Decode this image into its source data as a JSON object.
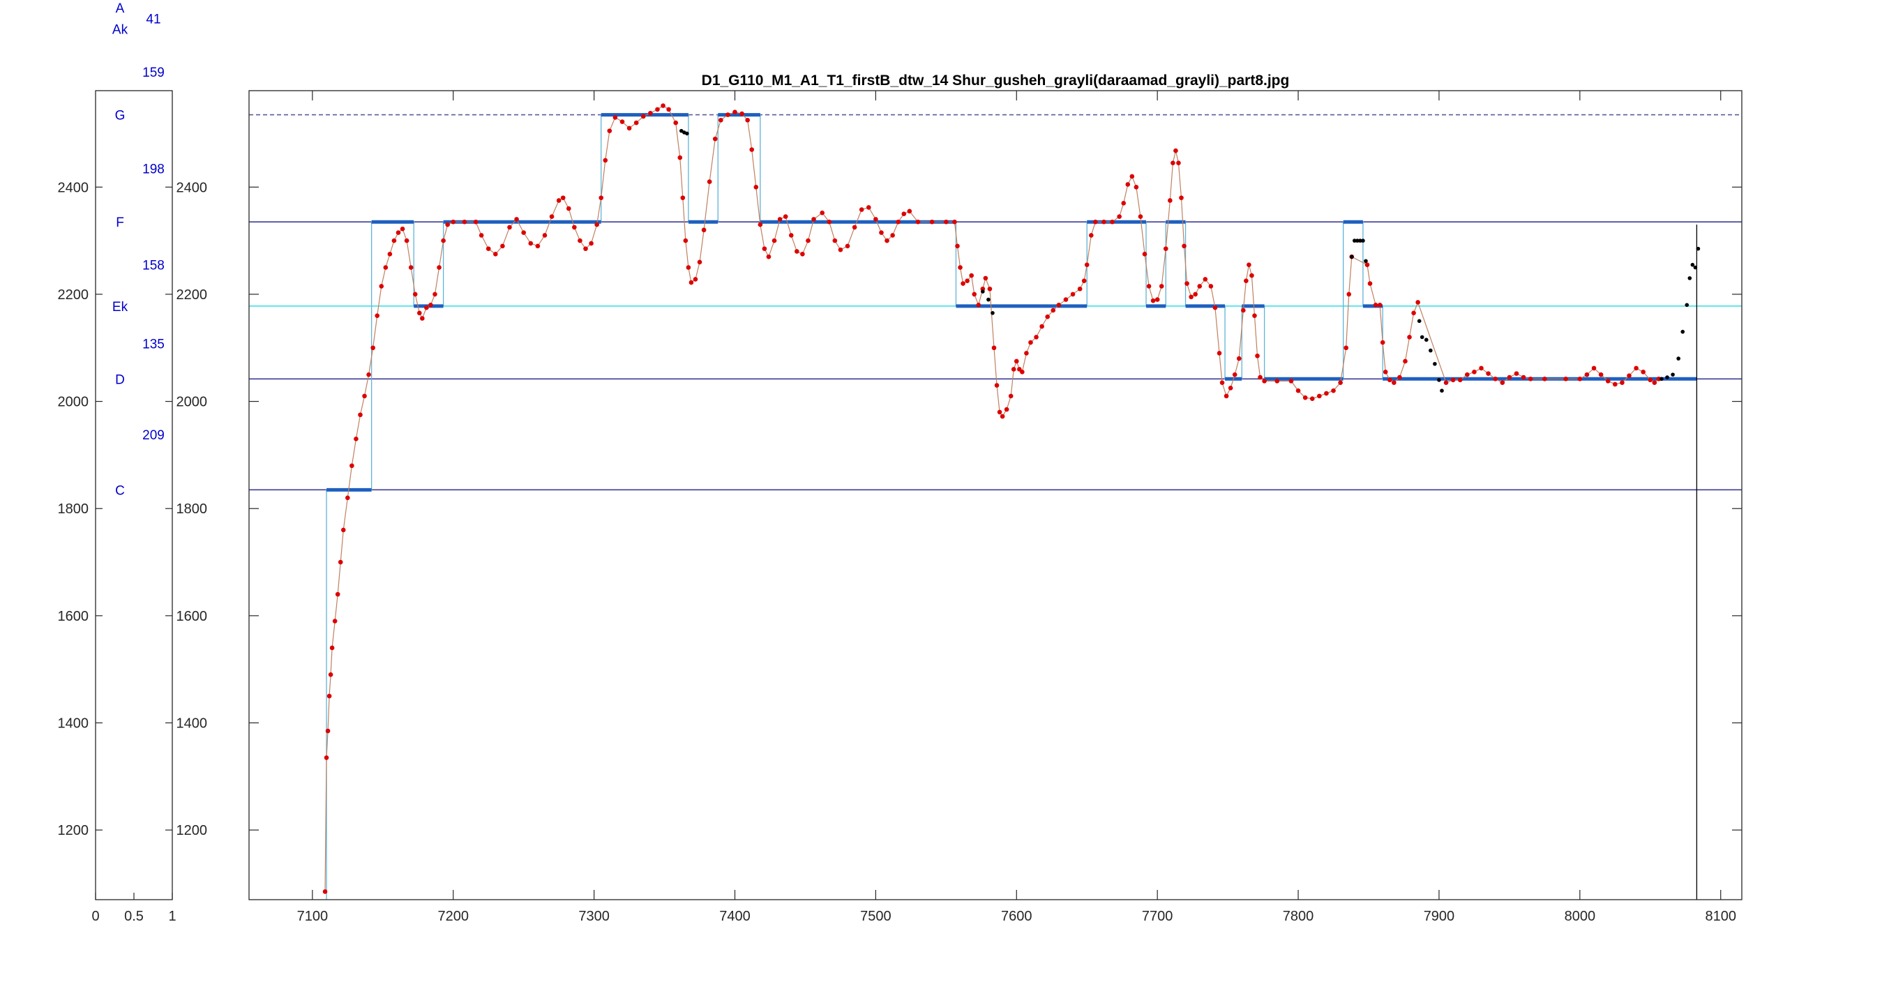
{
  "chart_data": [
    {
      "type": "line",
      "panel": "left",
      "xlim": [
        0,
        1
      ],
      "ylim": [
        1070,
        2580
      ],
      "x_ticks": [
        0,
        0.5,
        1
      ],
      "y_ticks": [
        1200,
        1400,
        1600,
        1800,
        2000,
        2200,
        2400
      ],
      "y_tick_labels": [
        "1200",
        "1400",
        "1600",
        "1800",
        "2000",
        "2200",
        "2400"
      ],
      "x_tick_labels": [
        "0",
        "0.5",
        "1"
      ],
      "note_labels": [
        {
          "text": "A",
          "y": 2735
        },
        {
          "text": "Ak",
          "y": 2695
        },
        {
          "text": "G",
          "y": 2535
        },
        {
          "text": "F",
          "y": 2335
        },
        {
          "text": "Ek",
          "y": 2178
        },
        {
          "text": "D",
          "y": 2042
        },
        {
          "text": "C",
          "y": 1835
        }
      ],
      "interval_labels": [
        {
          "text": "41",
          "y": 2715
        },
        {
          "text": "159",
          "y": 2615
        },
        {
          "text": "198",
          "y": 2435
        },
        {
          "text": "158",
          "y": 2255
        },
        {
          "text": "135",
          "y": 2108
        },
        {
          "text": "209",
          "y": 1938
        }
      ]
    },
    {
      "type": "scatter",
      "panel": "main",
      "title": "D1_G110_M1_A1_T1_firstB_dtw_14 Shur_gusheh_grayli(daraamad_grayli)_part8.jpg",
      "xlim": [
        7055,
        8115
      ],
      "ylim": [
        1070,
        2580
      ],
      "x_ticks": [
        7100,
        7200,
        7300,
        7400,
        7500,
        7600,
        7700,
        7800,
        7900,
        8000,
        8100
      ],
      "x_tick_labels": [
        "7100",
        "7200",
        "7300",
        "7400",
        "7500",
        "7600",
        "7700",
        "7800",
        "7900",
        "8000",
        "8100"
      ],
      "y_ticks": [
        1200,
        1400,
        1600,
        1800,
        2000,
        2200,
        2400
      ],
      "y_tick_labels": [
        "1200",
        "1400",
        "1600",
        "1800",
        "2000",
        "2200",
        "2400"
      ],
      "reference_lines": [
        {
          "y": 2535,
          "color": "#5a5a9a",
          "style": "dashed"
        },
        {
          "y": 2335,
          "color": "#3c3c96",
          "style": "solid"
        },
        {
          "y": 2178,
          "color": "#40e0e8",
          "style": "solid"
        },
        {
          "y": 2042,
          "color": "#3c3c96",
          "style": "solid"
        },
        {
          "y": 1835,
          "color": "#3c3c96",
          "style": "solid"
        }
      ],
      "vertical_line_x": 8083,
      "colors": {
        "pitch": "#dd0000",
        "unvoiced": "#000000",
        "segment": "#1f5fbf",
        "step_line": "#5fb4d8",
        "connector": "#c08060"
      },
      "segments": [
        {
          "x0": 7110,
          "x1": 7142,
          "y": 1835
        },
        {
          "x0": 7142,
          "x1": 7172,
          "y": 2335
        },
        {
          "x0": 7172,
          "x1": 7193,
          "y": 2178
        },
        {
          "x0": 7193,
          "x1": 7305,
          "y": 2335
        },
        {
          "x0": 7305,
          "x1": 7367,
          "y": 2535
        },
        {
          "x0": 7367,
          "x1": 7388,
          "y": 2335
        },
        {
          "x0": 7388,
          "x1": 7418,
          "y": 2535
        },
        {
          "x0": 7418,
          "x1": 7557,
          "y": 2335
        },
        {
          "x0": 7557,
          "x1": 7650,
          "y": 2178
        },
        {
          "x0": 7650,
          "x1": 7692,
          "y": 2335
        },
        {
          "x0": 7692,
          "x1": 7706,
          "y": 2178
        },
        {
          "x0": 7706,
          "x1": 7720,
          "y": 2335
        },
        {
          "x0": 7720,
          "x1": 7748,
          "y": 2178
        },
        {
          "x0": 7748,
          "x1": 7760,
          "y": 2042
        },
        {
          "x0": 7760,
          "x1": 7776,
          "y": 2178
        },
        {
          "x0": 7776,
          "x1": 7832,
          "y": 2042
        },
        {
          "x0": 7832,
          "x1": 7846,
          "y": 2335
        },
        {
          "x0": 7846,
          "x1": 7860,
          "y": 2178
        },
        {
          "x0": 7860,
          "x1": 8083,
          "y": 2042
        }
      ],
      "pitch_points": [
        [
          7109,
          1085
        ],
        [
          7110,
          1335
        ],
        [
          7111,
          1385
        ],
        [
          7112,
          1450
        ],
        [
          7113,
          1490
        ],
        [
          7114,
          1540
        ],
        [
          7116,
          1590
        ],
        [
          7118,
          1640
        ],
        [
          7120,
          1700
        ],
        [
          7122,
          1760
        ],
        [
          7125,
          1820
        ],
        [
          7128,
          1880
        ],
        [
          7131,
          1930
        ],
        [
          7134,
          1975
        ],
        [
          7137,
          2010
        ],
        [
          7140,
          2050
        ],
        [
          7143,
          2100
        ],
        [
          7146,
          2160
        ],
        [
          7149,
          2215
        ],
        [
          7152,
          2250
        ],
        [
          7155,
          2275
        ],
        [
          7158,
          2300
        ],
        [
          7161,
          2315
        ],
        [
          7164,
          2322
        ],
        [
          7167,
          2300
        ],
        [
          7170,
          2250
        ],
        [
          7173,
          2200
        ],
        [
          7176,
          2165
        ],
        [
          7178,
          2155
        ],
        [
          7181,
          2175
        ],
        [
          7184,
          2180
        ],
        [
          7187,
          2200
        ],
        [
          7190,
          2250
        ],
        [
          7193,
          2300
        ],
        [
          7196,
          2330
        ],
        [
          7200,
          2335
        ],
        [
          7208,
          2335
        ],
        [
          7216,
          2335
        ],
        [
          7220,
          2310
        ],
        [
          7225,
          2285
        ],
        [
          7230,
          2275
        ],
        [
          7235,
          2290
        ],
        [
          7240,
          2325
        ],
        [
          7245,
          2340
        ],
        [
          7250,
          2315
        ],
        [
          7255,
          2295
        ],
        [
          7260,
          2290
        ],
        [
          7265,
          2310
        ],
        [
          7270,
          2345
        ],
        [
          7275,
          2375
        ],
        [
          7278,
          2380
        ],
        [
          7282,
          2360
        ],
        [
          7286,
          2325
        ],
        [
          7290,
          2300
        ],
        [
          7294,
          2285
        ],
        [
          7298,
          2295
        ],
        [
          7302,
          2330
        ],
        [
          7305,
          2380
        ],
        [
          7308,
          2450
        ],
        [
          7311,
          2505
        ],
        [
          7315,
          2530
        ],
        [
          7320,
          2522
        ],
        [
          7325,
          2510
        ],
        [
          7330,
          2520
        ],
        [
          7335,
          2532
        ],
        [
          7340,
          2538
        ],
        [
          7345,
          2545
        ],
        [
          7349,
          2552
        ],
        [
          7353,
          2545
        ],
        [
          7358,
          2520
        ],
        [
          7361,
          2455
        ],
        [
          7363,
          2380
        ],
        [
          7365,
          2300
        ],
        [
          7367,
          2250
        ],
        [
          7369,
          2222
        ],
        [
          7372,
          2228
        ],
        [
          7375,
          2260
        ],
        [
          7378,
          2320
        ],
        [
          7382,
          2410
        ],
        [
          7386,
          2490
        ],
        [
          7390,
          2525
        ],
        [
          7395,
          2535
        ],
        [
          7400,
          2540
        ],
        [
          7405,
          2537
        ],
        [
          7409,
          2525
        ],
        [
          7412,
          2470
        ],
        [
          7415,
          2400
        ],
        [
          7418,
          2330
        ],
        [
          7421,
          2285
        ],
        [
          7424,
          2270
        ],
        [
          7428,
          2300
        ],
        [
          7432,
          2340
        ],
        [
          7436,
          2345
        ],
        [
          7440,
          2310
        ],
        [
          7444,
          2280
        ],
        [
          7448,
          2275
        ],
        [
          7452,
          2300
        ],
        [
          7456,
          2340
        ],
        [
          7462,
          2352
        ],
        [
          7467,
          2335
        ],
        [
          7471,
          2300
        ],
        [
          7475,
          2283
        ],
        [
          7480,
          2290
        ],
        [
          7485,
          2325
        ],
        [
          7490,
          2358
        ],
        [
          7495,
          2362
        ],
        [
          7500,
          2340
        ],
        [
          7504,
          2315
        ],
        [
          7508,
          2300
        ],
        [
          7512,
          2310
        ],
        [
          7516,
          2335
        ],
        [
          7520,
          2350
        ],
        [
          7524,
          2355
        ],
        [
          7530,
          2335
        ],
        [
          7540,
          2335
        ],
        [
          7550,
          2335
        ],
        [
          7556,
          2335
        ],
        [
          7558,
          2290
        ],
        [
          7560,
          2250
        ],
        [
          7562,
          2220
        ],
        [
          7565,
          2225
        ],
        [
          7568,
          2235
        ],
        [
          7570,
          2200
        ],
        [
          7573,
          2180
        ],
        [
          7576,
          2210
        ],
        [
          7578,
          2230
        ],
        [
          7581,
          2210
        ],
        [
          7584,
          2100
        ],
        [
          7586,
          2030
        ],
        [
          7588,
          1980
        ],
        [
          7590,
          1972
        ],
        [
          7593,
          1985
        ],
        [
          7596,
          2010
        ],
        [
          7598,
          2060
        ],
        [
          7600,
          2075
        ],
        [
          7602,
          2060
        ],
        [
          7604,
          2055
        ],
        [
          7607,
          2090
        ],
        [
          7610,
          2110
        ],
        [
          7614,
          2120
        ],
        [
          7618,
          2140
        ],
        [
          7622,
          2158
        ],
        [
          7626,
          2170
        ],
        [
          7630,
          2180
        ],
        [
          7635,
          2190
        ],
        [
          7640,
          2200
        ],
        [
          7645,
          2210
        ],
        [
          7648,
          2225
        ],
        [
          7650,
          2255
        ],
        [
          7653,
          2310
        ],
        [
          7656,
          2335
        ],
        [
          7662,
          2335
        ],
        [
          7668,
          2335
        ],
        [
          7673,
          2345
        ],
        [
          7676,
          2370
        ],
        [
          7679,
          2405
        ],
        [
          7682,
          2420
        ],
        [
          7685,
          2400
        ],
        [
          7688,
          2345
        ],
        [
          7691,
          2275
        ],
        [
          7694,
          2215
        ],
        [
          7697,
          2188
        ],
        [
          7700,
          2190
        ],
        [
          7703,
          2215
        ],
        [
          7706,
          2285
        ],
        [
          7709,
          2375
        ],
        [
          7711,
          2445
        ],
        [
          7713,
          2468
        ],
        [
          7715,
          2445
        ],
        [
          7717,
          2380
        ],
        [
          7719,
          2290
        ],
        [
          7721,
          2220
        ],
        [
          7724,
          2195
        ],
        [
          7727,
          2200
        ],
        [
          7730,
          2215
        ],
        [
          7734,
          2228
        ],
        [
          7738,
          2215
        ],
        [
          7741,
          2175
        ],
        [
          7744,
          2090
        ],
        [
          7746,
          2035
        ],
        [
          7749,
          2010
        ],
        [
          7752,
          2025
        ],
        [
          7755,
          2050
        ],
        [
          7758,
          2080
        ],
        [
          7761,
          2170
        ],
        [
          7763,
          2225
        ],
        [
          7765,
          2255
        ],
        [
          7767,
          2235
        ],
        [
          7769,
          2160
        ],
        [
          7771,
          2085
        ],
        [
          7773,
          2045
        ],
        [
          7776,
          2038
        ],
        [
          7785,
          2038
        ],
        [
          7795,
          2038
        ],
        [
          7800,
          2020
        ],
        [
          7805,
          2007
        ],
        [
          7810,
          2005
        ],
        [
          7815,
          2010
        ],
        [
          7820,
          2015
        ],
        [
          7825,
          2020
        ],
        [
          7830,
          2035
        ],
        [
          7834,
          2100
        ],
        [
          7836,
          2200
        ],
        [
          7838,
          2270
        ],
        [
          7849,
          2255
        ],
        [
          7851,
          2220
        ],
        [
          7855,
          2180
        ],
        [
          7858,
          2180
        ],
        [
          7860,
          2110
        ],
        [
          7862,
          2055
        ],
        [
          7865,
          2040
        ],
        [
          7868,
          2035
        ],
        [
          7872,
          2045
        ],
        [
          7876,
          2075
        ],
        [
          7879,
          2120
        ],
        [
          7882,
          2165
        ],
        [
          7885,
          2185
        ],
        [
          7905,
          2035
        ],
        [
          7910,
          2040
        ],
        [
          7915,
          2040
        ],
        [
          7920,
          2050
        ],
        [
          7925,
          2055
        ],
        [
          7930,
          2062
        ],
        [
          7935,
          2052
        ],
        [
          7940,
          2042
        ],
        [
          7945,
          2035
        ],
        [
          7950,
          2045
        ],
        [
          7955,
          2052
        ],
        [
          7960,
          2045
        ],
        [
          7965,
          2042
        ],
        [
          7975,
          2042
        ],
        [
          7990,
          2042
        ],
        [
          8000,
          2042
        ],
        [
          8005,
          2050
        ],
        [
          8010,
          2062
        ],
        [
          8015,
          2050
        ],
        [
          8020,
          2038
        ],
        [
          8025,
          2032
        ],
        [
          8030,
          2035
        ],
        [
          8035,
          2048
        ],
        [
          8040,
          2062
        ],
        [
          8045,
          2055
        ],
        [
          8050,
          2040
        ],
        [
          8053,
          2035
        ],
        [
          8056,
          2042
        ]
      ],
      "unvoiced_points": [
        [
          7362,
          2505
        ],
        [
          7364,
          2502
        ],
        [
          7366,
          2500
        ],
        [
          7576,
          2205
        ],
        [
          7580,
          2190
        ],
        [
          7583,
          2165
        ],
        [
          7838,
          2270
        ],
        [
          7840,
          2300
        ],
        [
          7842,
          2300
        ],
        [
          7844,
          2300
        ],
        [
          7846,
          2300
        ],
        [
          7848,
          2262
        ],
        [
          7886,
          2150
        ],
        [
          7888,
          2120
        ],
        [
          7891,
          2115
        ],
        [
          7894,
          2095
        ],
        [
          7897,
          2070
        ],
        [
          7900,
          2040
        ],
        [
          7902,
          2020
        ],
        [
          8058,
          2042
        ],
        [
          8062,
          2045
        ],
        [
          8066,
          2050
        ],
        [
          8070,
          2080
        ],
        [
          8073,
          2130
        ],
        [
          8076,
          2180
        ],
        [
          8078,
          2230
        ],
        [
          8080,
          2255
        ],
        [
          8082,
          2250
        ],
        [
          8084,
          2285
        ]
      ]
    }
  ]
}
